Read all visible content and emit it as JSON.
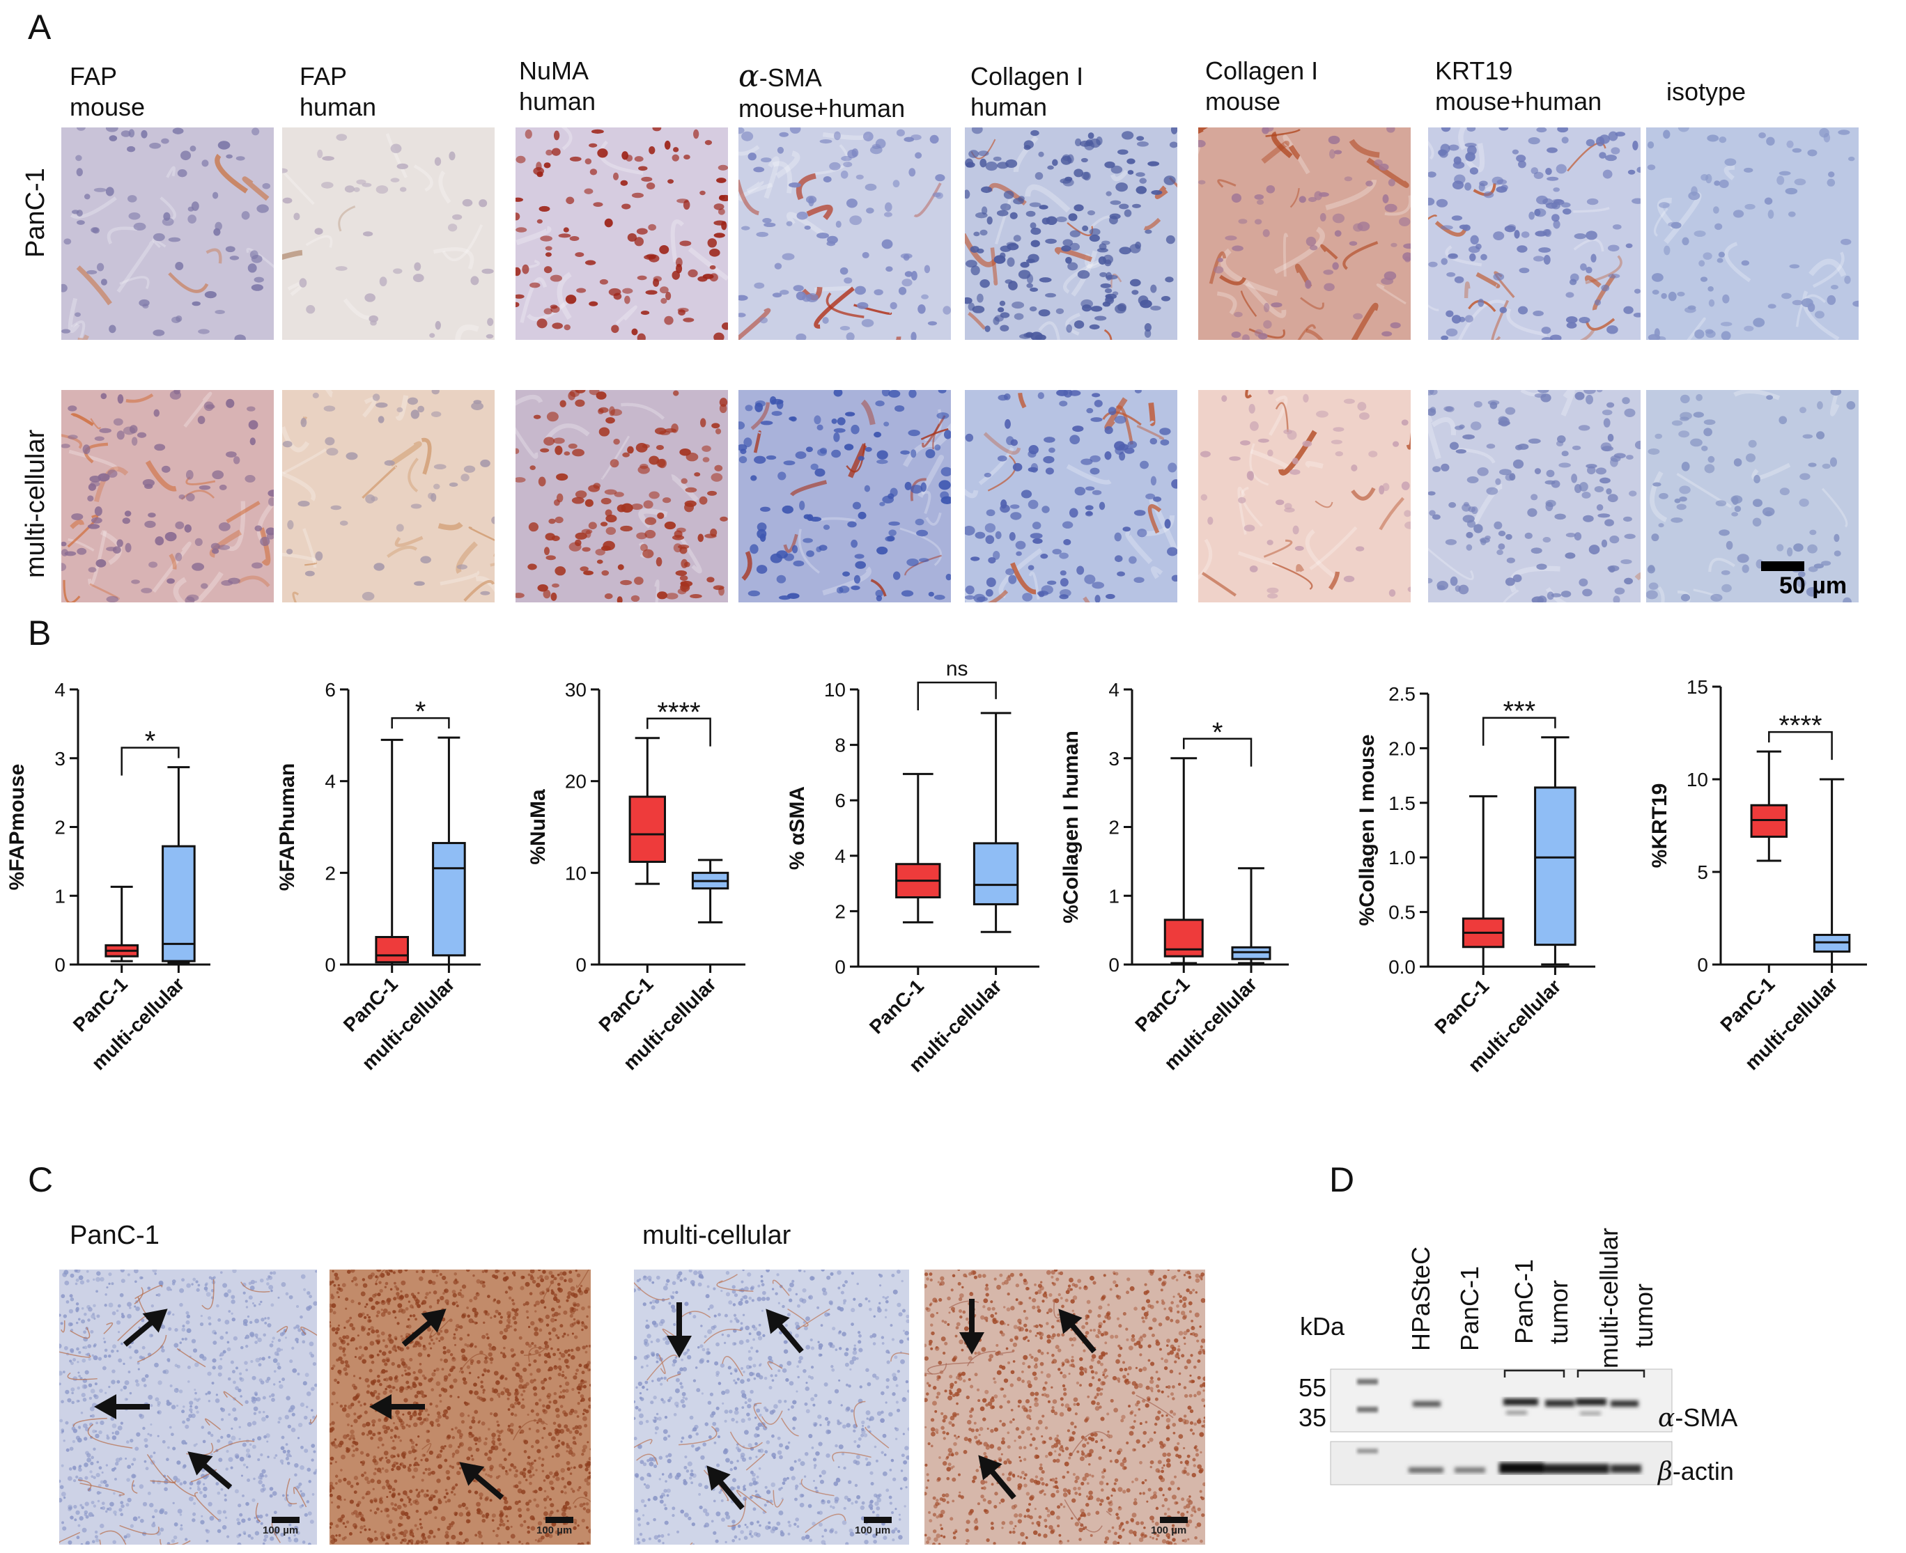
{
  "panels": {
    "A": "A",
    "B": "B",
    "C": "C",
    "D": "D"
  },
  "panelA": {
    "columns": [
      {
        "line1": "FAP",
        "line2": "mouse"
      },
      {
        "line1": "FAP",
        "line2": "human"
      },
      {
        "line1": "NuMA",
        "line2": "human"
      },
      {
        "line1": "-SMA",
        "alpha": "α",
        "line2": "mouse+human"
      },
      {
        "line1": "Collagen I",
        "line2": "human"
      },
      {
        "line1": "Collagen I",
        "line2": "mouse"
      },
      {
        "line1": "KRT19",
        "line2": "mouse+human"
      },
      {
        "line1": "isotype",
        "line2": ""
      }
    ],
    "rows": [
      "PanC-1",
      "multi-cellular"
    ],
    "scale": "50 µm"
  },
  "panelB": {
    "groups": [
      "PanC-1",
      "multi-cellular"
    ],
    "colors": {
      "PanC-1": "#ee3b3b",
      "multi-cellular": "#8fbdf5"
    }
  },
  "chart_data": [
    {
      "type": "box",
      "ylabel": "%FAPmouse",
      "ylim": [
        0,
        4
      ],
      "yticks": [
        0,
        1,
        2,
        3,
        4
      ],
      "significance": "*",
      "series": [
        {
          "name": "PanC-1",
          "min": 0.05,
          "q1": 0.12,
          "median": 0.2,
          "q3": 0.28,
          "max": 1.13
        },
        {
          "name": "multi-cellular",
          "min": 0.02,
          "q1": 0.05,
          "median": 0.3,
          "q3": 1.72,
          "max": 2.87
        }
      ]
    },
    {
      "type": "box",
      "ylabel": "%FAPhuman",
      "ylim": [
        0,
        6
      ],
      "yticks": [
        0,
        2,
        4,
        6
      ],
      "significance": "*",
      "series": [
        {
          "name": "PanC-1",
          "min": 0.0,
          "q1": 0.05,
          "median": 0.2,
          "q3": 0.6,
          "max": 4.9
        },
        {
          "name": "multi-cellular",
          "min": 0.0,
          "q1": 0.2,
          "median": 2.1,
          "q3": 2.65,
          "max": 4.95
        }
      ]
    },
    {
      "type": "box",
      "ylabel": "%NuMa",
      "ylim": [
        0,
        30
      ],
      "yticks": [
        0,
        10,
        20,
        30
      ],
      "significance": "****",
      "series": [
        {
          "name": "PanC-1",
          "min": 8.8,
          "q1": 11.2,
          "median": 14.2,
          "q3": 18.3,
          "max": 24.7
        },
        {
          "name": "multi-cellular",
          "min": 4.6,
          "q1": 8.3,
          "median": 9.1,
          "q3": 10.0,
          "max": 11.4
        }
      ]
    },
    {
      "type": "box",
      "ylabel": "% αSMA",
      "ylim": [
        0,
        10
      ],
      "yticks": [
        0,
        2,
        4,
        6,
        8,
        10
      ],
      "significance": "ns",
      "series": [
        {
          "name": "PanC-1",
          "min": 1.6,
          "q1": 2.5,
          "median": 3.1,
          "q3": 3.7,
          "max": 6.95
        },
        {
          "name": "multi-cellular",
          "min": 1.25,
          "q1": 2.25,
          "median": 2.95,
          "q3": 4.45,
          "max": 9.15
        }
      ]
    },
    {
      "type": "box",
      "ylabel": "%Collagen I human",
      "ylim": [
        0,
        4
      ],
      "yticks": [
        0,
        1,
        2,
        3,
        4
      ],
      "significance": "*",
      "series": [
        {
          "name": "PanC-1",
          "min": 0.02,
          "q1": 0.12,
          "median": 0.22,
          "q3": 0.65,
          "max": 3.0
        },
        {
          "name": "multi-cellular",
          "min": 0.02,
          "q1": 0.08,
          "median": 0.18,
          "q3": 0.25,
          "max": 1.4
        }
      ]
    },
    {
      "type": "box",
      "ylabel": "%Collagen I mouse",
      "ylim": [
        0,
        2.5
      ],
      "yticks": [
        0.0,
        0.5,
        1.0,
        1.5,
        2.0,
        2.5
      ],
      "significance": "***",
      "series": [
        {
          "name": "PanC-1",
          "min": 0.0,
          "q1": 0.18,
          "median": 0.31,
          "q3": 0.44,
          "max": 1.56
        },
        {
          "name": "multi-cellular",
          "min": 0.02,
          "q1": 0.2,
          "median": 1.0,
          "q3": 1.64,
          "max": 2.1
        }
      ]
    },
    {
      "type": "box",
      "ylabel": "%KRT19",
      "ylim": [
        0,
        15
      ],
      "yticks": [
        0,
        5,
        10,
        15
      ],
      "significance": "****",
      "series": [
        {
          "name": "PanC-1",
          "min": 5.6,
          "q1": 6.9,
          "median": 7.8,
          "q3": 8.6,
          "max": 11.5
        },
        {
          "name": "multi-cellular",
          "min": 0.0,
          "q1": 0.7,
          "median": 1.2,
          "q3": 1.6,
          "max": 10.0
        }
      ]
    }
  ],
  "panelC": {
    "labels": [
      "PanC-1",
      "multi-cellular"
    ],
    "scale": "100 µm"
  },
  "panelD": {
    "kda": "kDa",
    "markers": [
      "55",
      "35"
    ],
    "lanes": [
      "HPaSteC",
      "PanC-1"
    ],
    "lanes_two_line": [
      {
        "line1": "PanC-1",
        "line2": "tumor"
      },
      {
        "line1": "multi-cellular",
        "line2": "tumor"
      }
    ],
    "bands": [
      {
        "symbol": "α",
        "name": "-SMA"
      },
      {
        "symbol": "β",
        "name": "-actin"
      }
    ]
  }
}
